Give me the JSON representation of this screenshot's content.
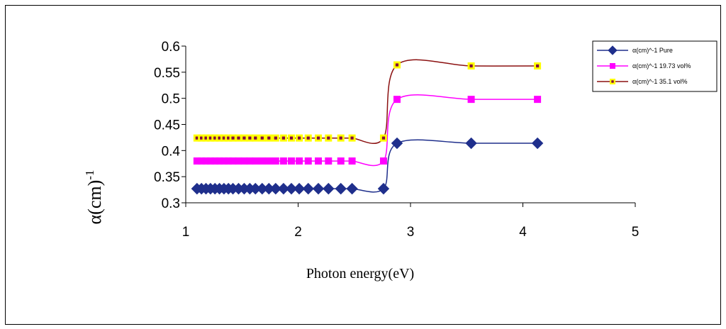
{
  "chart_data": {
    "type": "line",
    "xlabel": "Photon energy(eV)",
    "ylabel": "α(cm)",
    "ylabel_sup": "-1",
    "xlim": [
      1,
      5
    ],
    "ylim": [
      0.3,
      0.6
    ],
    "xticks": [
      1,
      2,
      3,
      4,
      5
    ],
    "yticks": [
      0.3,
      0.35,
      0.4,
      0.45,
      0.5,
      0.55,
      0.6
    ],
    "ytick_labels": [
      "0.3",
      "0.35",
      "0.4",
      "0.45",
      "0.5",
      "0.55",
      "0.6"
    ],
    "grid": false,
    "legend_position": "top-right",
    "x": [
      1.1,
      1.14,
      1.18,
      1.22,
      1.26,
      1.3,
      1.34,
      1.38,
      1.42,
      1.47,
      1.52,
      1.57,
      1.62,
      1.68,
      1.74,
      1.8,
      1.87,
      1.94,
      2.01,
      2.09,
      2.18,
      2.27,
      2.38,
      2.48,
      2.76,
      2.88,
      3.54,
      4.13
    ],
    "series": [
      {
        "name": "α(cm)^-1 Pure",
        "color": "#1f2f8c",
        "marker": "diamond",
        "marker_fill": "#1f2f8c",
        "values": [
          0.327,
          0.327,
          0.327,
          0.327,
          0.327,
          0.327,
          0.327,
          0.327,
          0.327,
          0.327,
          0.327,
          0.327,
          0.327,
          0.327,
          0.327,
          0.327,
          0.327,
          0.327,
          0.327,
          0.327,
          0.327,
          0.327,
          0.327,
          0.327,
          0.327,
          0.414,
          0.414,
          0.414
        ]
      },
      {
        "name": "α(cm)^-1 19.73 vol%",
        "color": "#ff00ff",
        "marker": "square",
        "marker_fill": "#ff00ff",
        "values": [
          0.38,
          0.38,
          0.38,
          0.38,
          0.38,
          0.38,
          0.38,
          0.38,
          0.38,
          0.38,
          0.38,
          0.38,
          0.38,
          0.38,
          0.38,
          0.38,
          0.38,
          0.38,
          0.38,
          0.38,
          0.38,
          0.38,
          0.38,
          0.38,
          0.38,
          0.498,
          0.498,
          0.498
        ]
      },
      {
        "name": "α(cm)^-1 35.1 vol%",
        "color": "#8b1010",
        "marker": "square",
        "marker_fill": "#ffff00",
        "marker_center": "#800040",
        "values": [
          0.424,
          0.424,
          0.424,
          0.424,
          0.424,
          0.424,
          0.424,
          0.424,
          0.424,
          0.424,
          0.424,
          0.424,
          0.424,
          0.424,
          0.424,
          0.424,
          0.424,
          0.424,
          0.424,
          0.424,
          0.424,
          0.424,
          0.424,
          0.424,
          0.424,
          0.564,
          0.562,
          0.562
        ]
      }
    ]
  }
}
